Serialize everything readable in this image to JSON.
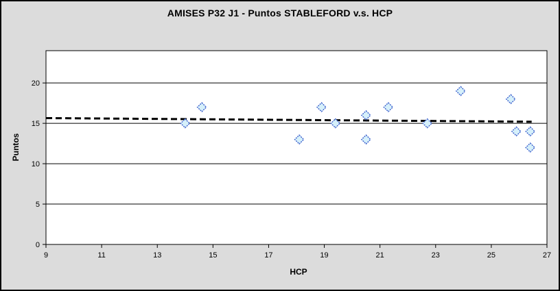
{
  "window": {
    "title": "AMISES P32 J1 - Puntos STABLEFORD v.s. HCP"
  },
  "colors": {
    "background": "#DCDCDC",
    "plot_background": "#FFFFFF",
    "axis": "#000000",
    "grid": "#000000",
    "tick_label": "#000000",
    "marker_fill": "#D6F0FA",
    "marker_stroke": "#3A5FCD",
    "trendline": "#000000"
  },
  "chart_data": {
    "type": "scatter",
    "title": "AMISES P32 J1 - Puntos STABLEFORD v.s. HCP",
    "xlabel": "HCP",
    "ylabel": "Puntos",
    "xlim": [
      9,
      27
    ],
    "ylim": [
      0,
      24
    ],
    "x_ticks": [
      9,
      11,
      13,
      15,
      17,
      19,
      21,
      23,
      25,
      27
    ],
    "y_ticks": [
      0,
      5,
      10,
      15,
      20
    ],
    "grid": "horizontal-only",
    "legend": "none",
    "series": [
      {
        "name": "Puntos STABLEFORD",
        "marker": "diamond",
        "points": [
          [
            14.0,
            15
          ],
          [
            14.6,
            17
          ],
          [
            18.1,
            13
          ],
          [
            18.9,
            17
          ],
          [
            19.4,
            15
          ],
          [
            20.5,
            16
          ],
          [
            20.5,
            13
          ],
          [
            21.3,
            17
          ],
          [
            22.7,
            15
          ],
          [
            23.9,
            19
          ],
          [
            25.7,
            18
          ],
          [
            25.9,
            14
          ],
          [
            26.4,
            14
          ],
          [
            26.4,
            12
          ]
        ]
      }
    ],
    "trendline": {
      "type": "linear",
      "style": "dashed",
      "x_start": 9,
      "y_start": 15.65,
      "x_end": 26.45,
      "y_end": 15.2
    }
  }
}
